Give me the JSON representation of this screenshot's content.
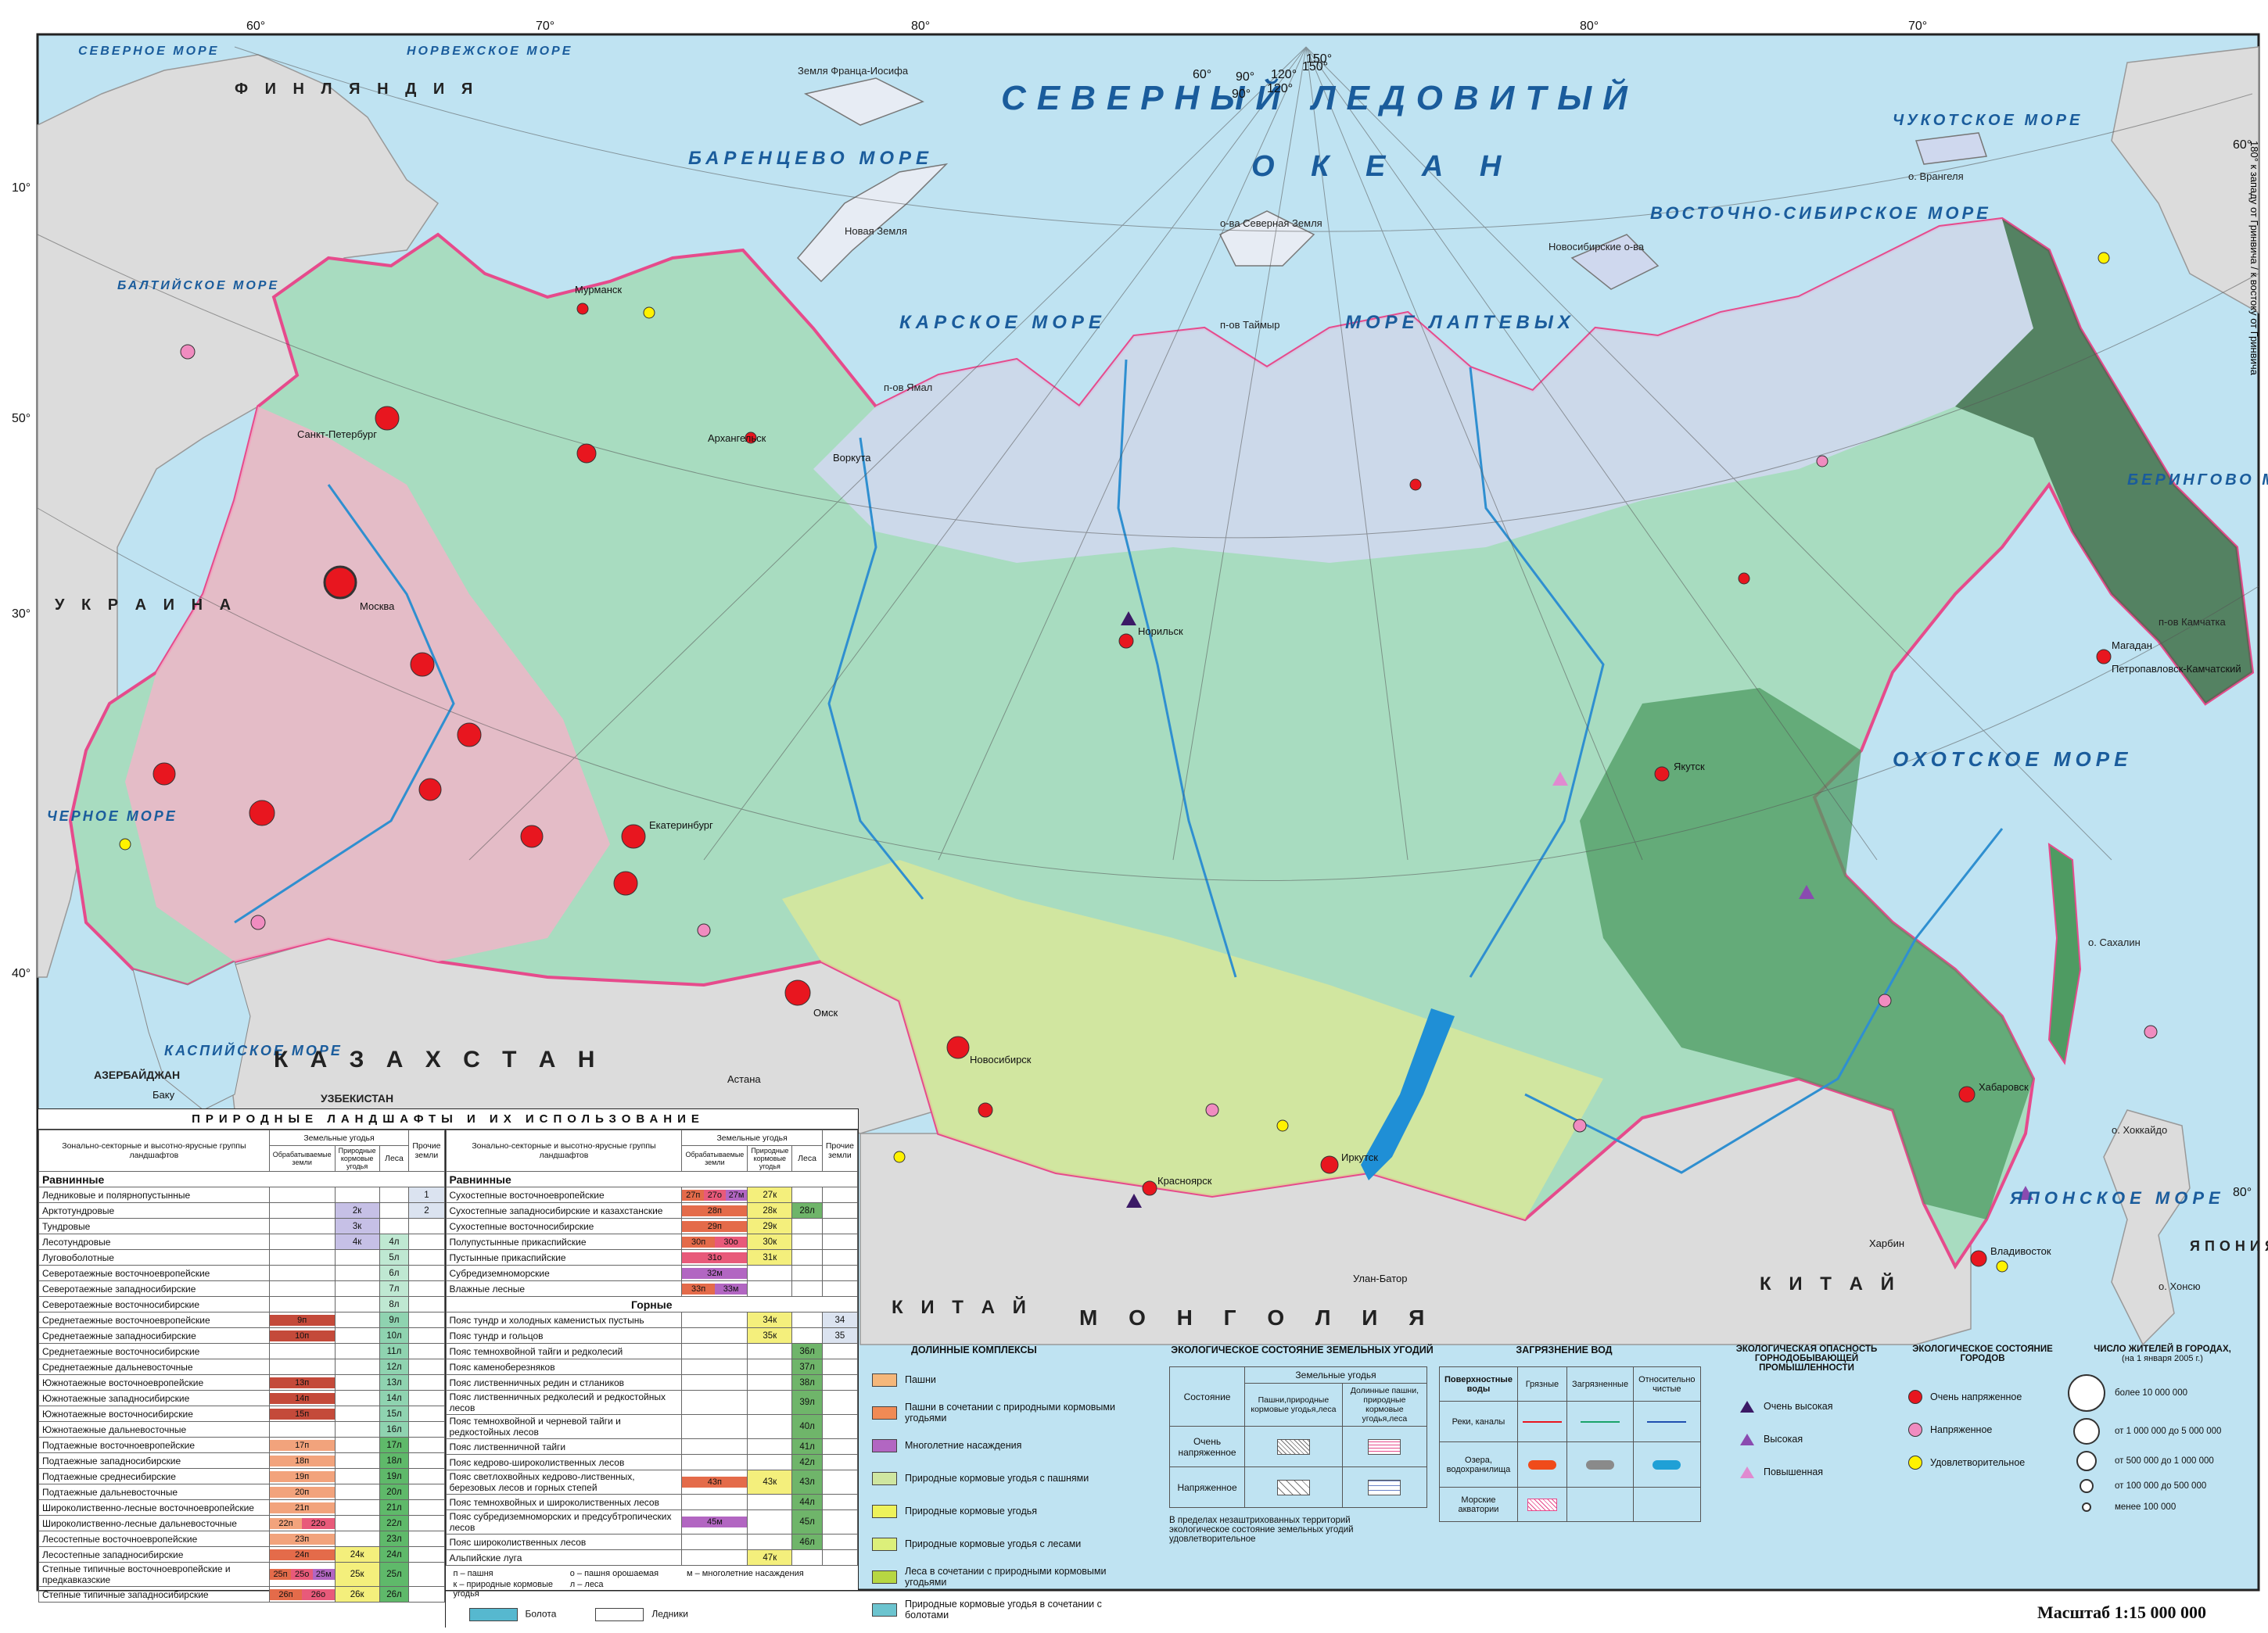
{
  "colors": {
    "ocean": "#bfe3f2",
    "land_foreign": "#dcdcdc",
    "tundra": "#cfd8ee",
    "forest_light": "#a8dcc0",
    "forest_dark": "#4e9b62",
    "steppe": "#e3d67a",
    "mountain_dark": "#3f6b4a",
    "city_very": "#e8161f",
    "city_tense": "#f08cc0",
    "city_ok": "#fff200",
    "border": "#e64b8c"
  },
  "map": {
    "ocean_labels": [
      "СЕВЕРНЫЙ ЛЕДОВИТЫЙ",
      "О К Е А Н",
      "МОРЕ ЛАПТЕВЫХ",
      "КАРСКОЕ МОРЕ",
      "ВОСТОЧНО-СИБИРСКОЕ МОРЕ",
      "БАРЕНЦЕВО МОРЕ",
      "ОХОТСКОЕ МОРЕ",
      "ЯПОНСКОЕ МОРЕ",
      "БЕРИНГОВО МОРЕ",
      "ЧУКОТСКОЕ МОРЕ",
      "КАСПИЙСКОЕ МОРЕ",
      "ЧЕРНОЕ МОРЕ",
      "СЕВЕРНОЕ МОРЕ",
      "НОРВЕЖСКОЕ МОРЕ",
      "БАЛТИЙСКОЕ МОРЕ"
    ],
    "country_labels": [
      "К А З А Х С Т А Н",
      "М О Н Г О Л И Я",
      "К И Т А Й",
      "К И Т А Й",
      "У К Р А И Н А",
      "Ф И Н Л Я Н Д И Я",
      "УЗБЕКИСТАН",
      "АЗЕРБАЙДЖАН",
      "ЯПОНИЯ"
    ],
    "city_labels": [
      "Москва",
      "Санкт-Петербург",
      "Мурманск",
      "Архангельск",
      "Воркута",
      "Норильск",
      "Якутск",
      "Магадан",
      "Иркутск",
      "Красноярск",
      "Новосибирск",
      "Омск",
      "Екатеринбург",
      "Хабаровск",
      "Владивосток",
      "Петропавловск-Камчатский",
      "Улан-Батор",
      "Астана",
      "Баку",
      "Харбин"
    ],
    "island_labels": [
      "о. Врангеля",
      "Новосибирские о-ва",
      "о-ва Северная Земля",
      "Земля Франца-Иосифа",
      "Новая Земля",
      "о. Сахалин",
      "о. Хоккайдо",
      "о. Хонсю",
      "п-ов Камчатка",
      "п-ов Таймыр",
      "п-ов Ямал"
    ],
    "lon_top": [
      "60°",
      "70°",
      "80°",
      "90°",
      "120°",
      "150°",
      "80°",
      "70°"
    ],
    "lon_curve": [
      "60°",
      "90°",
      "120°",
      "150°"
    ],
    "lat_left": [
      "10°",
      "50°",
      "30°",
      "40°"
    ],
    "lat_right": [
      "60°",
      "80°"
    ],
    "greenwich_note": "180° к западу от Гринвича / к востоку от Гринвича",
    "scale": "Масштаб 1:15 000 000"
  },
  "landscape_legend": {
    "title": "ПРИРОДНЫЕ ЛАНДШАФТЫ И ИХ ИСПОЛЬЗОВАНИЕ",
    "col_group": "Зонально-секторные и высотно-ярусные группы ландшафтов",
    "col_land": "Земельные угодья",
    "col_arable": "Обрабатываемые земли",
    "col_pasture": "Природные кормовые угодья",
    "col_forest": "Леса",
    "col_other": "Прочие земли",
    "sec_plain": "Равнинные",
    "sec_mountain": "Горные",
    "left_rows": [
      {
        "name": "Ледниковые и полярнопустынные",
        "a": "",
        "p": "",
        "f": "",
        "o": "1"
      },
      {
        "name": "Арктотундровые",
        "a": "",
        "p": "2к",
        "f": "",
        "o": "2"
      },
      {
        "name": "Тундровые",
        "a": "",
        "p": "3к",
        "f": "",
        "o": ""
      },
      {
        "name": "Лесотундровые",
        "a": "",
        "p": "4к",
        "f": "4л",
        "o": ""
      },
      {
        "name": "Луговоболотные",
        "a": "",
        "p": "",
        "f": "5л",
        "o": ""
      },
      {
        "name": "Северотаежные восточноевропейские",
        "a": "",
        "p": "",
        "f": "6л",
        "o": ""
      },
      {
        "name": "Северотаежные западносибирские",
        "a": "",
        "p": "",
        "f": "7л",
        "o": ""
      },
      {
        "name": "Северотаежные восточносибирские",
        "a": "",
        "p": "",
        "f": "8л",
        "o": ""
      },
      {
        "name": "Среднетаежные восточноевропейские",
        "a": "9п",
        "p": "",
        "f": "9л",
        "o": ""
      },
      {
        "name": "Среднетаежные западносибирские",
        "a": "10п",
        "p": "",
        "f": "10л",
        "o": ""
      },
      {
        "name": "Среднетаежные восточносибирские",
        "a": "",
        "p": "",
        "f": "11л",
        "o": ""
      },
      {
        "name": "Среднетаежные дальневосточные",
        "a": "",
        "p": "",
        "f": "12л",
        "o": ""
      },
      {
        "name": "Южнотаежные восточноевропейские",
        "a": "13п",
        "p": "",
        "f": "13л",
        "o": ""
      },
      {
        "name": "Южнотаежные западносибирские",
        "a": "14п",
        "p": "",
        "f": "14л",
        "o": ""
      },
      {
        "name": "Южнотаежные восточносибирские",
        "a": "15п",
        "p": "",
        "f": "15л",
        "o": ""
      },
      {
        "name": "Южнотаежные дальневосточные",
        "a": "",
        "p": "",
        "f": "16л",
        "o": ""
      },
      {
        "name": "Подтаежные восточноевропейские",
        "a": "17п",
        "p": "",
        "f": "17л",
        "o": ""
      },
      {
        "name": "Подтаежные западносибирские",
        "a": "18п",
        "p": "",
        "f": "18л",
        "o": ""
      },
      {
        "name": "Подтаежные среднесибирские",
        "a": "19п",
        "p": "",
        "f": "19л",
        "o": ""
      },
      {
        "name": "Подтаежные дальневосточные",
        "a": "20п",
        "p": "",
        "f": "20л",
        "o": ""
      },
      {
        "name": "Широколиственно-лесные восточноевропейские",
        "a": "21п",
        "p": "",
        "f": "21л",
        "o": ""
      },
      {
        "name": "Широколиственно-лесные дальневосточные",
        "a": "22п",
        "a2": "22о",
        "p": "",
        "f": "22л",
        "o": ""
      },
      {
        "name": "Лесостепные восточноевропейские",
        "a": "23п",
        "p": "",
        "f": "23л",
        "o": ""
      },
      {
        "name": "Лесостепные западносибирские",
        "a": "24п",
        "p": "24к",
        "f": "24л",
        "o": ""
      },
      {
        "name": "Степные типичные восточноевропейские и предкавказские",
        "a": "25п",
        "a2": "25о",
        "a3": "25м",
        "p": "25к",
        "f": "25л",
        "o": ""
      },
      {
        "name": "Степные типичные западносибирские",
        "a": "26п",
        "a2": "26о",
        "p": "26к",
        "f": "26л",
        "o": ""
      }
    ],
    "right_plain_rows": [
      {
        "name": "Сухостепные восточноевропейские",
        "a": "27п",
        "a2": "27о",
        "a3": "27м",
        "p": "27к",
        "f": "",
        "o": ""
      },
      {
        "name": "Сухостепные западносибирские и казахстанские",
        "a": "28п",
        "p": "28к",
        "f": "28л",
        "o": ""
      },
      {
        "name": "Сухостепные восточносибирские",
        "a": "29п",
        "p": "29к",
        "f": "",
        "o": ""
      },
      {
        "name": "Полупустынные прикаспийские",
        "a": "30п",
        "a2": "30о",
        "p": "30к",
        "f": "",
        "o": ""
      },
      {
        "name": "Пустынные прикаспийские",
        "a": "31о",
        "p": "31к",
        "f": "",
        "o": ""
      },
      {
        "name": "Субредиземноморские",
        "a": "32м",
        "p": "",
        "f": "",
        "o": ""
      },
      {
        "name": "Влажные лесные",
        "a": "33п",
        "a2": "33м",
        "p": "",
        "f": "",
        "o": ""
      }
    ],
    "right_mountain_rows": [
      {
        "name": "Пояс тундр и холодных каменистых пустынь",
        "a": "",
        "p": "34к",
        "f": "",
        "o": "34"
      },
      {
        "name": "Пояс тундр и гольцов",
        "a": "",
        "p": "35к",
        "f": "",
        "o": "35"
      },
      {
        "name": "Пояс темнохвойной тайги и редколесий",
        "a": "",
        "p": "",
        "f": "36л",
        "o": ""
      },
      {
        "name": "Пояс каменоберезняков",
        "a": "",
        "p": "",
        "f": "37л",
        "o": ""
      },
      {
        "name": "Пояс лиственничных редин и стлаников",
        "a": "",
        "p": "",
        "f": "38л",
        "o": ""
      },
      {
        "name": "Пояс лиственничных редколесий и редкостойных лесов",
        "a": "",
        "p": "",
        "f": "39л",
        "o": ""
      },
      {
        "name": "Пояс темнохвойной и черневой тайги и редкостойных лесов",
        "a": "",
        "p": "",
        "f": "40л",
        "o": ""
      },
      {
        "name": "Пояс лиственничной тайги",
        "a": "",
        "p": "",
        "f": "41л",
        "o": ""
      },
      {
        "name": "Пояс кедрово-широколиственных лесов",
        "a": "",
        "p": "",
        "f": "42л",
        "o": ""
      },
      {
        "name": "Пояс светлохвойных кедрово-лиственных, березовых лесов и горных степей",
        "a": "43п",
        "p": "43к",
        "f": "43л",
        "o": ""
      },
      {
        "name": "Пояс темнохвойных и широколиственных лесов",
        "a": "",
        "p": "",
        "f": "44л",
        "o": ""
      },
      {
        "name": "Пояс субредиземноморских и предсубтропических лесов",
        "a": "45м",
        "p": "",
        "f": "45л",
        "o": ""
      },
      {
        "name": "Пояс широколиственных лесов",
        "a": "",
        "p": "",
        "f": "46л",
        "o": ""
      },
      {
        "name": "Альпийские луга",
        "a": "",
        "p": "47к",
        "f": "",
        "o": ""
      }
    ],
    "footnotes": [
      "п – пашня",
      "о – пашня орошаемая",
      "м – многолетние насаждения",
      "к – природные кормовые угодья",
      "л – леса"
    ],
    "swamp": "Болота",
    "glaciers": "Ледники"
  },
  "valley_legend": {
    "title": "ДОЛИННЫЕ КОМПЛЕКСЫ",
    "items": [
      {
        "label": "Пашни",
        "color": "#f5b77a"
      },
      {
        "label": "Пашни в сочетании с природными кормовыми угодьями",
        "color": "#f08a55"
      },
      {
        "label": "Многолетние насаждения",
        "color": "#b266c2"
      },
      {
        "label": "Природные кормовые угодья с пашнями",
        "color": "#cfe6a0"
      },
      {
        "label": "Природные кормовые угодья",
        "color": "#eef25a"
      },
      {
        "label": "Природные кормовые угодья с лесами",
        "color": "#dcef7a"
      },
      {
        "label": "Леса в сочетании с природными кормовыми угодьями",
        "color": "#b7d742"
      },
      {
        "label": "Природные кормовые угодья в сочетании с болотами",
        "color": "#6cc4cf"
      }
    ]
  },
  "eco_state": {
    "title": "ЭКОЛОГИЧЕСКОЕ СОСТОЯНИЕ ЗЕМЕЛЬНЫХ УГОДИЙ",
    "col_state": "Состояние",
    "col_lands": "Земельные угодья",
    "col_a": "Пашни,природные кормовые угодья,леса",
    "col_b": "Долинные пашни, природные кормовые угодья,леса",
    "rows": [
      "Очень напряженное",
      "Напряженное"
    ],
    "note": "В пределах незаштрихованных территорий экологическое состояние земельных угодий удовлетворительное"
  },
  "water": {
    "title": "ЗАГРЯЗНЕНИЕ ВОД",
    "col_surface": "Поверхностные воды",
    "cols": [
      "Грязные",
      "Загрязненные",
      "Относительно чистые"
    ],
    "rows": [
      "Реки, каналы",
      "Озера, водохранилища",
      "Морские акватории"
    ]
  },
  "mining": {
    "title": "ЭКОЛОГИЧЕСКАЯ ОПАСНОСТЬ ГОРНОДОБЫВАЮЩЕЙ ПРОМЫШЛЕННОСТИ",
    "items": [
      {
        "label": "Очень высокая",
        "color": "#3b1a66"
      },
      {
        "label": "Высокая",
        "color": "#8a4bb0"
      },
      {
        "label": "Повышенная",
        "color": "#e08ad0"
      }
    ]
  },
  "city_state": {
    "title": "ЭКОЛОГИЧЕСКОЕ СОСТОЯНИЕ ГОРОДОВ",
    "items": [
      {
        "label": "Очень напряженное",
        "color": "#e8161f"
      },
      {
        "label": "Напряженное",
        "color": "#f08cc0"
      },
      {
        "label": "Удовлетворительное",
        "color": "#fff200"
      }
    ]
  },
  "population": {
    "title": "ЧИСЛО ЖИТЕЛЕЙ В ГОРОДАХ,",
    "subtitle": "(на 1 января 2005 г.)",
    "items": [
      "более 10 000 000",
      "от 1 000 000 до 5 000 000",
      "от 500 000 до 1 000 000",
      "от 100 000 до 500 000",
      "менее 100 000"
    ]
  }
}
